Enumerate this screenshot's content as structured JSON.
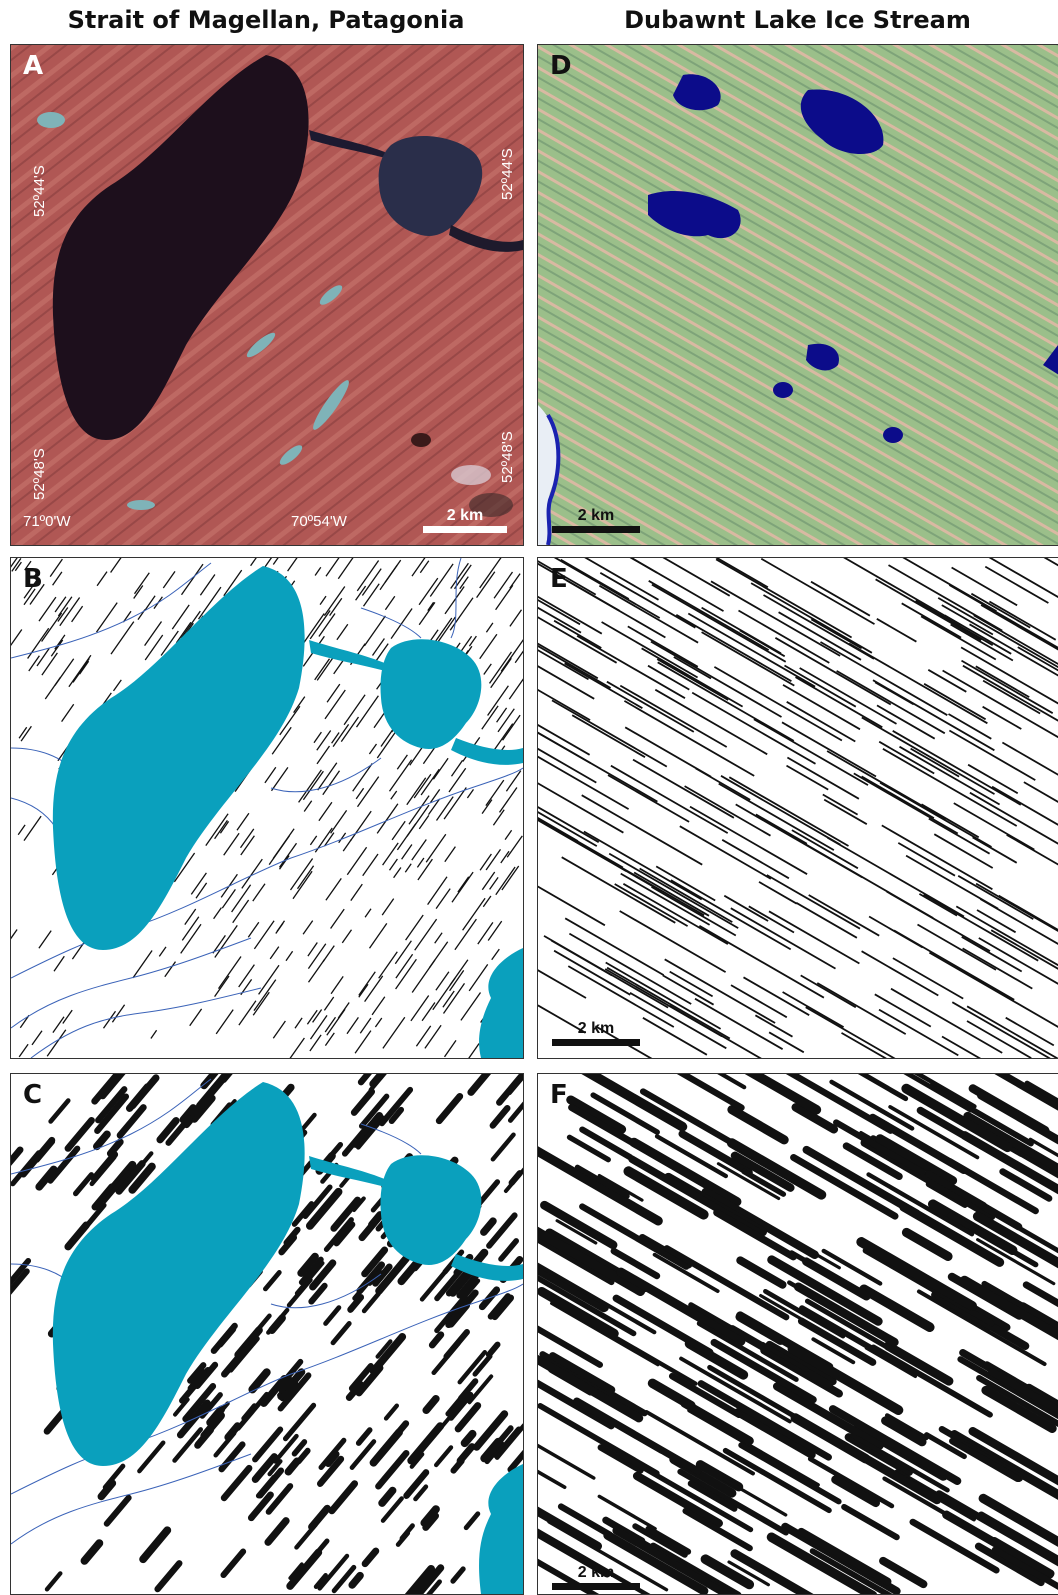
{
  "columns": {
    "left_title": "Strait of Magellan, Patagonia",
    "right_title": "Dubawnt Lake Ice Stream"
  },
  "panels": {
    "a": {
      "letter": "A",
      "lat_top": "52º44'S",
      "lat_bottom": "52º48'S",
      "lon_left": "71º0'W",
      "lon_right": "70º54'W",
      "scale": "2 km"
    },
    "b": {
      "letter": "B"
    },
    "c": {
      "letter": "C"
    },
    "d": {
      "letter": "D",
      "scale": "2 km"
    },
    "e": {
      "letter": "E",
      "scale": "2 km"
    },
    "f": {
      "letter": "F",
      "scale": "2 km"
    }
  },
  "colors": {
    "lake_blue": "#0aa0bd",
    "stream_blue": "#3b63b8",
    "satellite_red": "#b45a57",
    "satellite_green": "#9bbf8a",
    "dark_lake": "#1d0f1c",
    "deep_blue": "#0c0c8a"
  }
}
